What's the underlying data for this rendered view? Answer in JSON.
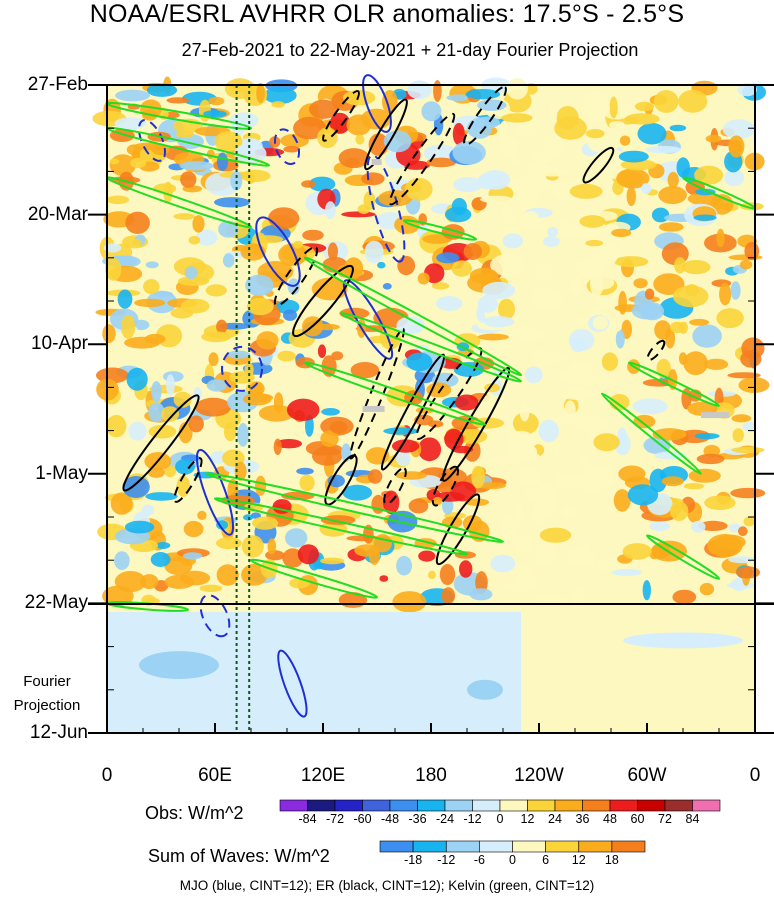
{
  "title": "NOAA/ESRL AVHRR OLR anomalies: 17.5°S - 2.5°S",
  "subtitle": "27-Feb-2021 to 22-May-2021 + 21-day Fourier Projection",
  "chart_data": {
    "type": "heatmap",
    "title": "NOAA/ESRL AVHRR OLR anomalies: 17.5°S - 2.5°S",
    "subtitle": "27-Feb-2021 to 22-May-2021 + 21-day Fourier Projection",
    "x_ticks": [
      "0",
      "60E",
      "120E",
      "180",
      "120W",
      "60W",
      "0"
    ],
    "x_tick_lon": [
      0,
      60,
      120,
      180,
      240,
      300,
      360
    ],
    "y_ticks": [
      "27-Feb",
      "20-Mar",
      "10-Apr",
      "1-May",
      "22-May",
      "12-Jun"
    ],
    "y_tick_day": [
      0,
      21,
      42,
      63,
      84,
      105
    ],
    "projection_label": "Fourier Projection",
    "obs_colorbar": {
      "label": "Obs: W/m^2",
      "levels": [
        -84,
        -72,
        -60,
        -48,
        -36,
        -24,
        -12,
        0,
        12,
        24,
        36,
        48,
        60,
        72,
        84
      ],
      "colors": [
        "#8a2be2",
        "#1a1a80",
        "#2323c8",
        "#3f63dc",
        "#3c8ff0",
        "#18b4f0",
        "#9cd2f4",
        "#d6eefc",
        "#fdf8c0",
        "#fbd43a",
        "#fbac1c",
        "#f57f1d",
        "#ee1d1d",
        "#c80000",
        "#9b2d2d",
        "#f06fb0"
      ]
    },
    "waves_colorbar": {
      "label": "Sum of Waves: W/m^2",
      "levels": [
        -18,
        -12,
        -6,
        0,
        6,
        12,
        18
      ],
      "colors": [
        "#3c8ff0",
        "#18b4f0",
        "#9cd2f4",
        "#d6eefc",
        "#fdf8c0",
        "#fbd43a",
        "#fbac1c",
        "#f57f1d"
      ]
    },
    "contours": [
      {
        "name": "MJO",
        "color": "#1f2fd6",
        "cint": 12
      },
      {
        "name": "ER",
        "color": "#000000",
        "cint": 12
      },
      {
        "name": "Kelvin",
        "color": "#22dd22",
        "cint": 12
      }
    ],
    "caption": "MJO (blue, CINT=12); ER (black, CINT=12); Kelvin (green, CINT=12)"
  }
}
